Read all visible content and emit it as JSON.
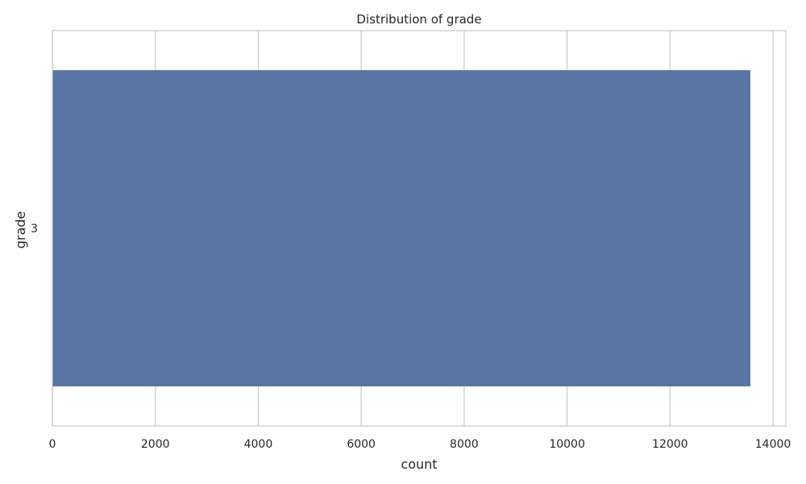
{
  "chart_data": {
    "type": "bar",
    "orientation": "horizontal",
    "title": "Distribution of grade",
    "xlabel": "count",
    "ylabel": "grade",
    "categories": [
      "3"
    ],
    "values": [
      13560
    ],
    "xlim": [
      0,
      14250
    ],
    "xticks": [
      0,
      2000,
      4000,
      6000,
      8000,
      10000,
      12000,
      14000
    ],
    "grid": true,
    "colors": {
      "bar": "#5975a4",
      "grid": "#cccccc",
      "spine": "#cccccc"
    }
  }
}
